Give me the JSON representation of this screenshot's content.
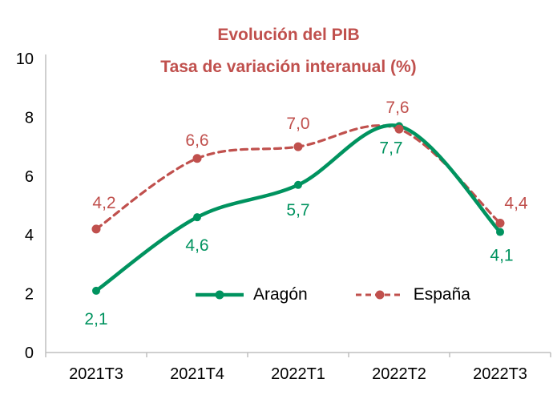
{
  "chart_data": {
    "type": "line",
    "title": "Evolución del PIB",
    "subtitle": "Tasa de variación interanual (%)",
    "title_color": "#C0504D",
    "axis_color": "#BFBFBF",
    "text_color": "#000000",
    "categories": [
      "2021T3",
      "2021T4",
      "2022T1",
      "2022T2",
      "2022T3"
    ],
    "series": [
      {
        "name": "Aragón",
        "values": [
          2.1,
          4.6,
          5.7,
          7.7,
          4.1
        ],
        "labels": [
          "2,1",
          "4,6",
          "5,7",
          "7,7",
          "4,1"
        ],
        "color": "#00935F",
        "line_style": "solid",
        "label_side": "below",
        "label_offsets": [
          [
            0,
            42
          ],
          [
            0,
            42
          ],
          [
            0,
            38
          ],
          [
            -10,
            34
          ],
          [
            2,
            36
          ]
        ]
      },
      {
        "name": "España",
        "values": [
          4.2,
          6.6,
          7.0,
          7.6,
          4.4
        ],
        "labels": [
          "4,2",
          "6,6",
          "7,0",
          "7,6",
          "4,4"
        ],
        "color": "#C0504D",
        "line_style": "dashed",
        "label_side": "above",
        "label_offsets": [
          [
            10,
            -26
          ],
          [
            0,
            -16
          ],
          [
            0,
            -22
          ],
          [
            -2,
            -20
          ],
          [
            20,
            -18
          ]
        ]
      }
    ],
    "ylim": [
      0,
      10
    ],
    "yticks": [
      0,
      2,
      4,
      6,
      8,
      10
    ],
    "grid": false,
    "legend_position": "inside-bottom-center"
  }
}
